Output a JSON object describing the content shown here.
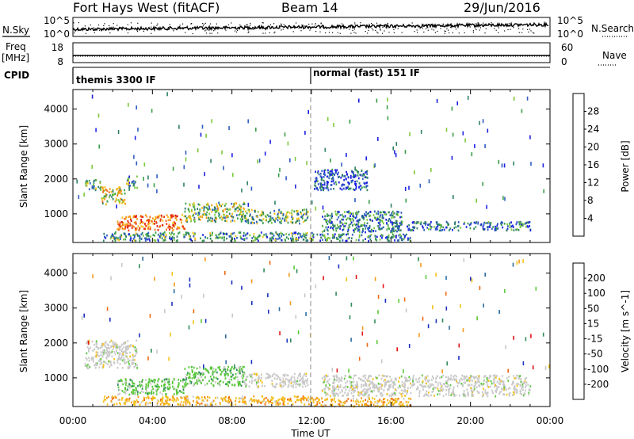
{
  "header": {
    "left": "Fort Hays West (fitACF)",
    "center": "Beam 14",
    "right": "29/Jun/2016"
  },
  "chart_data": [
    {
      "type": "line",
      "id": "noise",
      "left_label": "N.Sky",
      "left_ticks": [
        "10^5",
        "10^0"
      ],
      "right_label": "N.Search",
      "right_ticks": [
        "10^5",
        "10^0"
      ]
    },
    {
      "type": "line",
      "id": "freq",
      "left_label_line1": "Freq",
      "left_label_line2": "[MHz]",
      "left_ticks": [
        "18",
        "8"
      ],
      "right_label": "Nave",
      "right_ticks": [
        "60",
        "0"
      ]
    },
    {
      "type": "table",
      "id": "cpid",
      "label": "CPID",
      "segments": [
        {
          "start_hour": 0,
          "text": "themis 3300 IF"
        },
        {
          "start_hour": 12,
          "text": "normal (fast) 151 IF"
        }
      ]
    },
    {
      "type": "heatmap",
      "id": "power",
      "ylabel": "Slant Range [km]",
      "ylim": [
        180,
        4560
      ],
      "yticks": [
        1000,
        2000,
        3000,
        4000
      ],
      "xlim": [
        0,
        24
      ],
      "colorbar": {
        "label": "Power [dB]",
        "ticks": [
          "4",
          "8",
          "12",
          "16",
          "20",
          "24",
          "28"
        ],
        "colors": [
          "#1a20e0",
          "#2e5cc0",
          "#2f7f6a",
          "#3a9e4a",
          "#7cc83a",
          "#f4c21a",
          "#f49a1a",
          "#f06a14",
          "#e83a10",
          "#e01010"
        ]
      },
      "echo_regions": [
        {
          "t0": 0.6,
          "t1": 1.4,
          "r0": 1700,
          "r1": 2000,
          "level": 0.35
        },
        {
          "t0": 1.4,
          "t1": 2.6,
          "r0": 1300,
          "r1": 1800,
          "level": 0.5
        },
        {
          "t0": 2.6,
          "t1": 3.2,
          "r0": 1700,
          "r1": 2100,
          "level": 0.3
        },
        {
          "t0": 2.2,
          "t1": 5.6,
          "r0": 550,
          "r1": 1000,
          "level": 0.75
        },
        {
          "t0": 5.6,
          "t1": 8.6,
          "r0": 800,
          "r1": 1350,
          "level": 0.4
        },
        {
          "t0": 8.6,
          "t1": 11.8,
          "r0": 750,
          "r1": 1150,
          "level": 0.35
        },
        {
          "t0": 1.5,
          "t1": 12.0,
          "r0": 250,
          "r1": 500,
          "level": 0.3
        },
        {
          "t0": 12.5,
          "t1": 16.5,
          "r0": 500,
          "r1": 1100,
          "level": 0.25
        },
        {
          "t0": 16.0,
          "t1": 23.0,
          "r0": 550,
          "r1": 800,
          "level": 0.2
        },
        {
          "t0": 12.0,
          "t1": 17.0,
          "r0": 250,
          "r1": 450,
          "level": 0.25
        },
        {
          "t0": 12.1,
          "t1": 14.8,
          "r0": 1700,
          "r1": 2300,
          "level": 0.15
        }
      ]
    },
    {
      "type": "heatmap",
      "id": "velocity",
      "ylabel": "Slant Range [km]",
      "ylim": [
        180,
        4560
      ],
      "yticks": [
        1000,
        2000,
        3000,
        4000
      ],
      "xlim": [
        0,
        24
      ],
      "xticks": [
        "00:00",
        "04:00",
        "08:00",
        "12:00",
        "16:00",
        "20:00",
        "00:00"
      ],
      "xlabel": "Time UT",
      "colorbar": {
        "label": "Velocity [m s^-1]",
        "ticks": [
          "200",
          "100",
          "50",
          "15",
          "-15",
          "-50",
          "-100",
          "-200"
        ],
        "colors": [
          "#1a30c0",
          "#2a6aa0",
          "#2f8a5a",
          "#5ac83a",
          "#c8c8c8",
          "#f4c21a",
          "#f49a1a",
          "#f06a14",
          "#e01010"
        ]
      },
      "echo_regions": [
        {
          "t0": 0.6,
          "t1": 3.2,
          "r0": 1300,
          "r1": 2100,
          "level": "ground"
        },
        {
          "t0": 2.2,
          "t1": 5.6,
          "r0": 550,
          "r1": 1000,
          "level": "positive"
        },
        {
          "t0": 5.6,
          "t1": 8.6,
          "r0": 800,
          "r1": 1350,
          "level": "positive"
        },
        {
          "t0": 8.6,
          "t1": 11.8,
          "r0": 750,
          "r1": 1150,
          "level": "ground"
        },
        {
          "t0": 1.5,
          "t1": 12.0,
          "r0": 250,
          "r1": 500,
          "level": "negative"
        },
        {
          "t0": 12.5,
          "t1": 23.0,
          "r0": 500,
          "r1": 1100,
          "level": "ground"
        },
        {
          "t0": 12.0,
          "t1": 17.0,
          "r0": 200,
          "r1": 450,
          "level": "negative"
        }
      ]
    }
  ],
  "ui": {
    "xlabel": "Time UT"
  }
}
